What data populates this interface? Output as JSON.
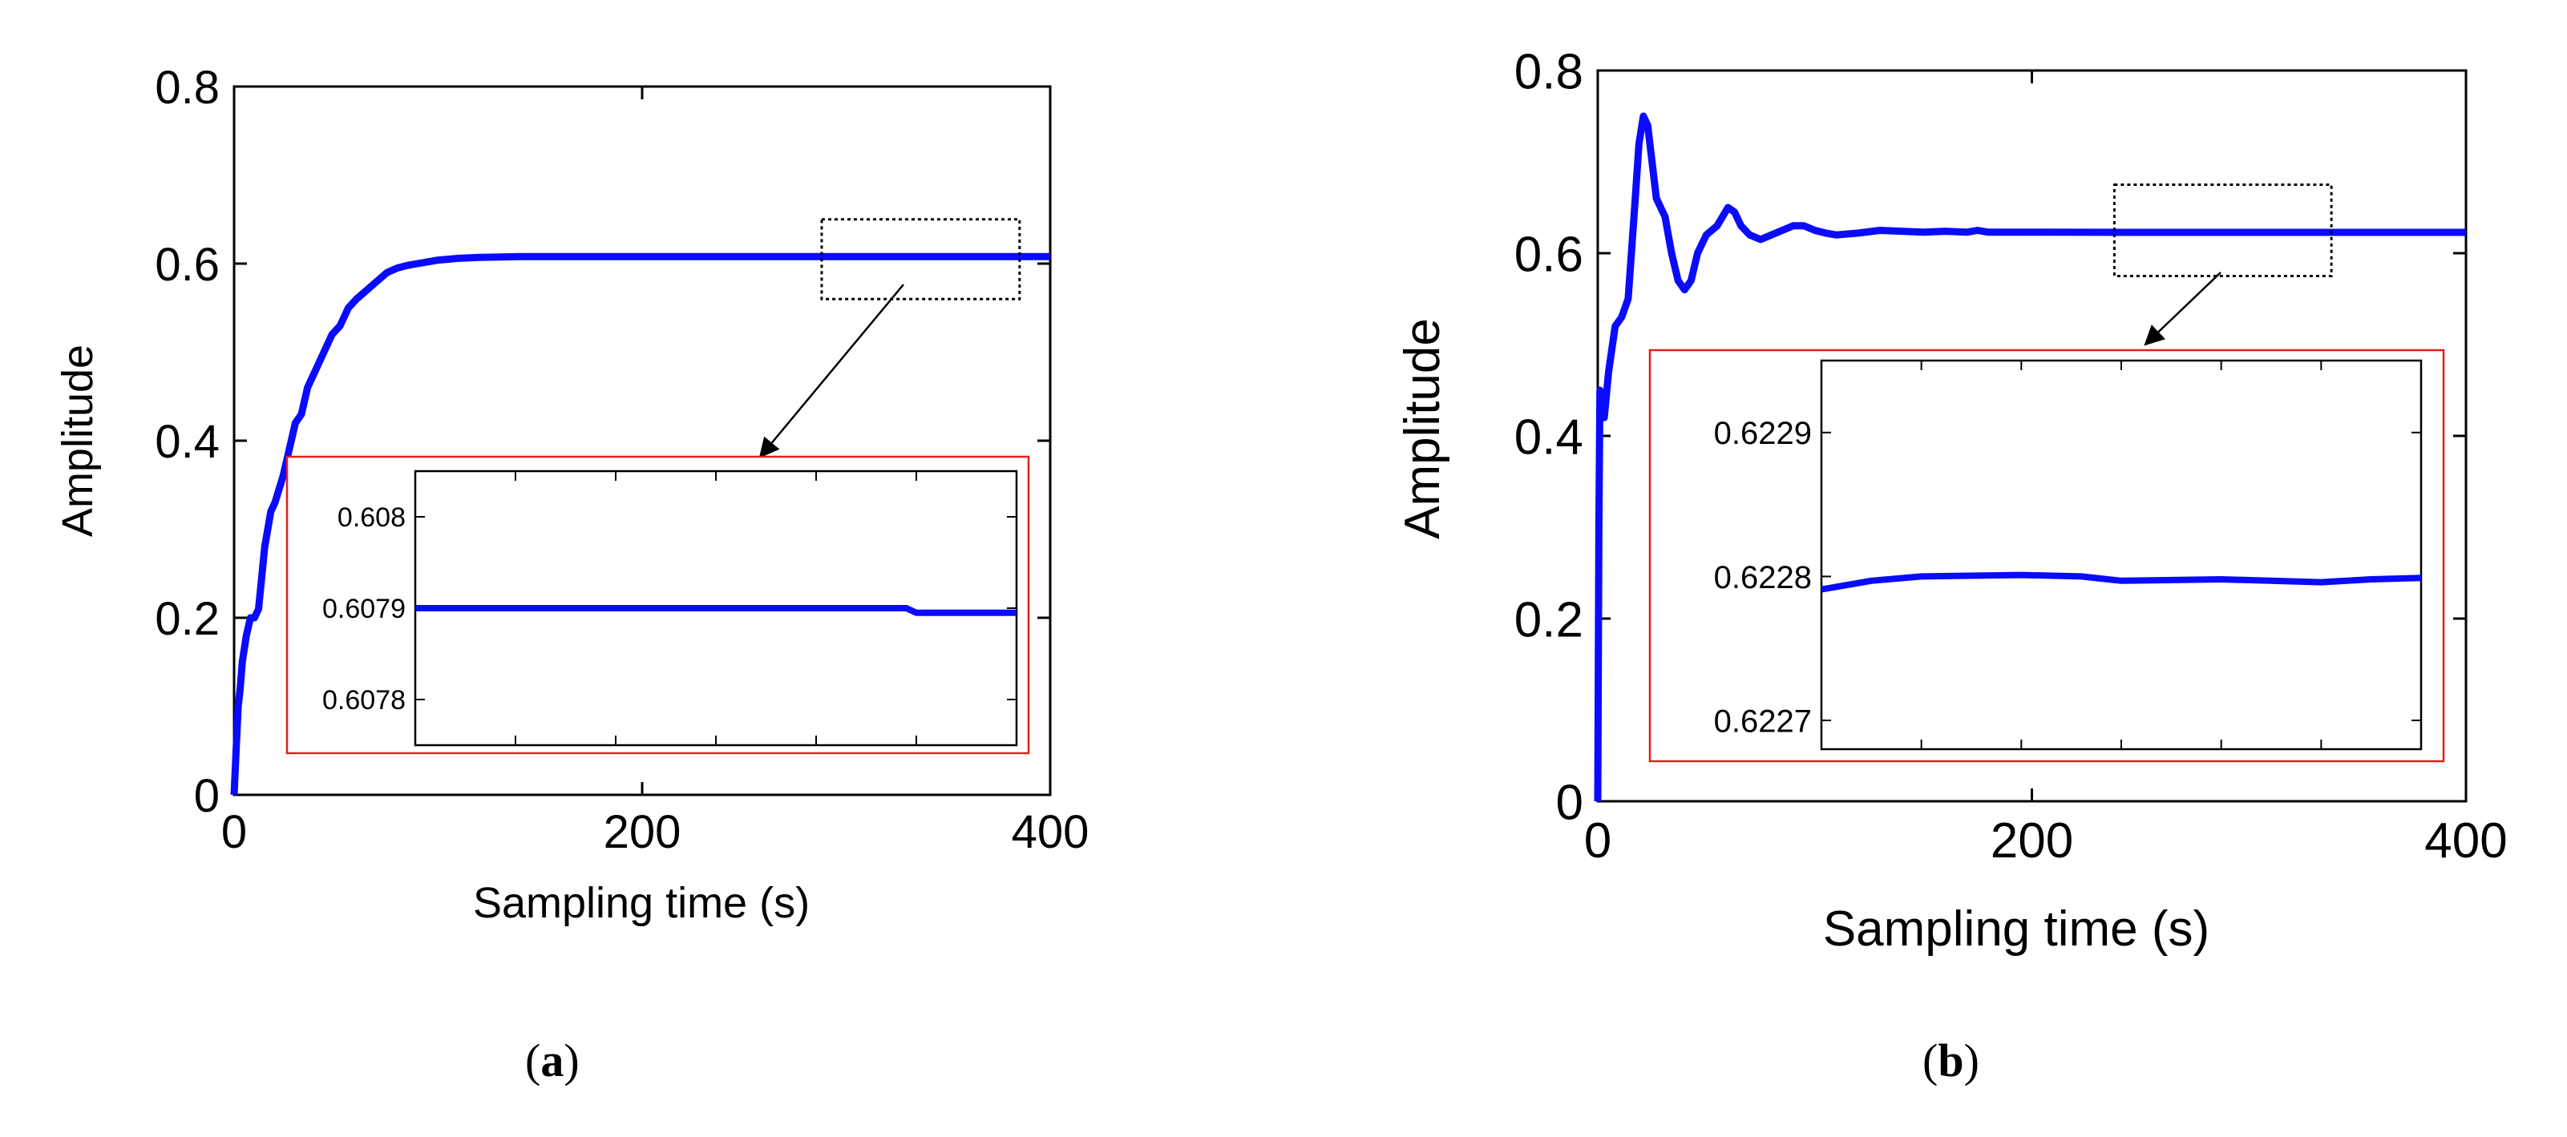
{
  "panels": [
    {
      "label": "a"
    },
    {
      "label": "b"
    }
  ],
  "chart_data": [
    {
      "panel": "a",
      "type": "line",
      "xlabel": "Sampling time (s)",
      "ylabel": "Amplitude",
      "xlim": [
        0,
        400
      ],
      "ylim": [
        0,
        0.8
      ],
      "xticks": [
        "0",
        "200",
        "400"
      ],
      "yticks": [
        "0",
        "0.2",
        "0.4",
        "0.6",
        "0.8"
      ],
      "color": "#0a0aff",
      "series": [
        {
          "x": [
            0,
            1,
            2,
            3,
            4,
            6,
            8,
            10,
            12,
            15,
            18,
            20,
            24,
            28,
            30,
            33,
            36,
            40,
            44,
            48,
            52,
            56,
            60,
            65,
            70,
            75,
            80,
            85,
            90,
            95,
            100,
            110,
            120,
            140,
            160,
            200,
            250,
            300,
            350,
            400
          ],
          "y": [
            0.0,
            0.05,
            0.1,
            0.12,
            0.15,
            0.18,
            0.2,
            0.2,
            0.21,
            0.28,
            0.32,
            0.33,
            0.36,
            0.4,
            0.42,
            0.43,
            0.46,
            0.48,
            0.5,
            0.52,
            0.53,
            0.55,
            0.56,
            0.57,
            0.58,
            0.59,
            0.595,
            0.598,
            0.6,
            0.602,
            0.604,
            0.606,
            0.607,
            0.6079,
            0.6079,
            0.6079,
            0.6079,
            0.6079,
            0.6079,
            0.6079
          ]
        }
      ],
      "zoom_box": {
        "xlim": [
          288,
          385
        ],
        "ylim": [
          0.56,
          0.65
        ]
      },
      "inset": {
        "yticks": [
          "0.608",
          "0.6079",
          "0.6078"
        ],
        "ylim": [
          0.60775,
          0.60805
        ],
        "xlim": [
          0,
          6
        ],
        "series": [
          {
            "x": [
              0,
              1,
              2,
              3,
              4,
              4.9,
              5.0,
              6.0
            ],
            "y": [
              0.6079,
              0.6079,
              0.6079,
              0.6079,
              0.6079,
              0.6079,
              0.607895,
              0.607895
            ]
          }
        ]
      }
    },
    {
      "panel": "b",
      "type": "line",
      "xlabel": "Sampling time (s)",
      "ylabel": "Amplitude",
      "xlim": [
        0,
        400
      ],
      "ylim": [
        0,
        0.8
      ],
      "xticks": [
        "0",
        "200",
        "400"
      ],
      "yticks": [
        "0",
        "0.2",
        "0.4",
        "0.6",
        "0.8"
      ],
      "color": "#0a0aff",
      "series": [
        {
          "x": [
            0,
            0.5,
            1,
            3,
            5,
            8,
            11,
            14,
            17,
            19,
            21,
            23,
            25,
            27,
            29,
            31,
            34,
            37,
            40,
            43,
            46,
            50,
            55,
            60,
            63,
            66,
            70,
            75,
            80,
            85,
            90,
            95,
            100,
            105,
            110,
            120,
            130,
            140,
            150,
            160,
            170,
            175,
            180,
            200,
            250,
            300,
            350,
            400
          ],
          "y": [
            0.0,
            0.3,
            0.45,
            0.42,
            0.47,
            0.52,
            0.53,
            0.55,
            0.65,
            0.72,
            0.75,
            0.74,
            0.7,
            0.66,
            0.65,
            0.64,
            0.6,
            0.57,
            0.56,
            0.57,
            0.6,
            0.62,
            0.63,
            0.65,
            0.645,
            0.63,
            0.62,
            0.615,
            0.62,
            0.625,
            0.63,
            0.63,
            0.625,
            0.622,
            0.62,
            0.622,
            0.625,
            0.624,
            0.623,
            0.624,
            0.623,
            0.625,
            0.623,
            0.623,
            0.6228,
            0.6228,
            0.6228,
            0.6228
          ]
        }
      ],
      "zoom_box": {
        "xlim": [
          238,
          338
        ],
        "ylim": [
          0.575,
          0.675
        ]
      },
      "inset": {
        "yticks": [
          "0.6229",
          "0.6228",
          "0.6227"
        ],
        "ylim": [
          0.62268,
          0.62295
        ],
        "xlim": [
          0,
          6
        ],
        "series": [
          {
            "x": [
              0,
              0.5,
              1.0,
              2.0,
              2.6,
              3.0,
              4.0,
              5.0,
              5.5,
              6.0
            ],
            "y": [
              0.622791,
              0.622797,
              0.6228,
              0.622801,
              0.6228,
              0.622797,
              0.622798,
              0.622796,
              0.622798,
              0.622799
            ]
          }
        ]
      }
    }
  ]
}
